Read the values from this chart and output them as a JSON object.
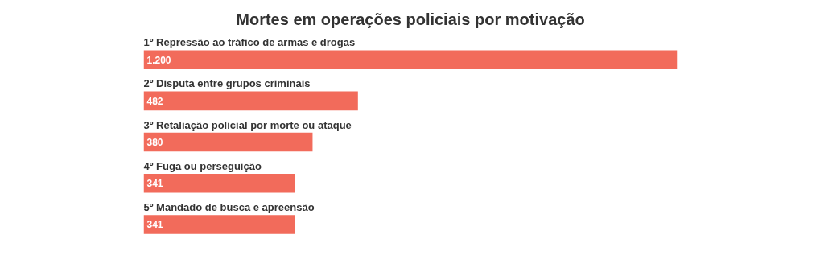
{
  "chart_data": {
    "type": "bar",
    "orientation": "horizontal",
    "title": "Mortes em operações policiais por motivação",
    "categories": [
      "1º Repressão ao tráfico de armas e drogas",
      "2º Disputa entre grupos criminais",
      "3º Retaliação policial por morte ou ataque",
      "4º Fuga ou perseguição",
      "5º Mandado de busca e apreensão"
    ],
    "values": [
      1200,
      482,
      380,
      341,
      341
    ],
    "value_labels": [
      "1.200",
      "482",
      "380",
      "341",
      "341"
    ],
    "color": "#f26b5b"
  }
}
